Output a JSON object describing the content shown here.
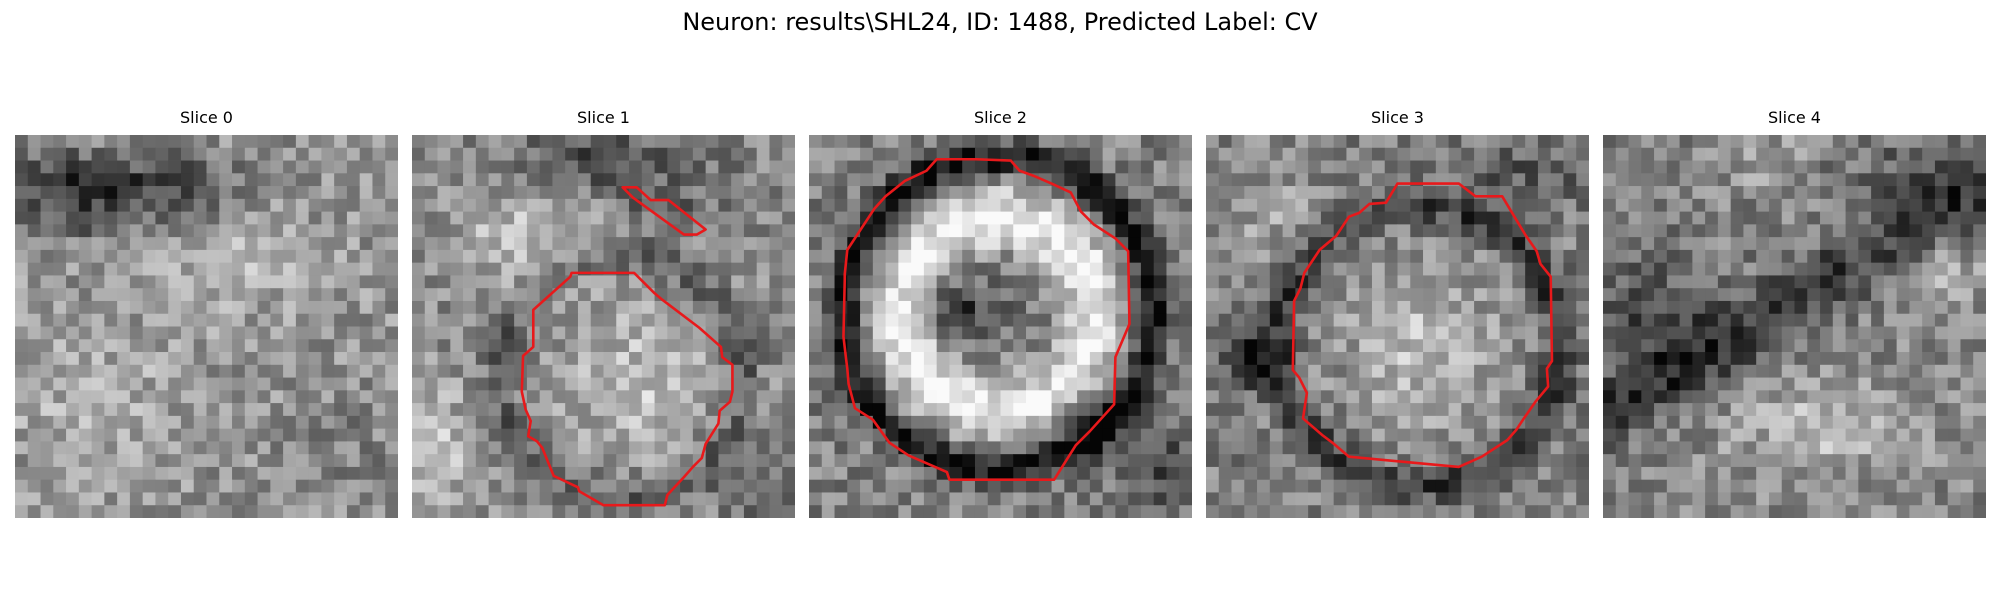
{
  "figure": {
    "title": "Neuron: results\\SHL24, ID: 1488, Predicted Label: CV"
  },
  "colors": {
    "contour": "#e8191b",
    "background": "#ffffff",
    "colormap": "grayscale"
  },
  "panels": [
    {
      "title": "Slice 0",
      "has_contour": false
    },
    {
      "title": "Slice 1",
      "has_contour": true
    },
    {
      "title": "Slice 2",
      "has_contour": true
    },
    {
      "title": "Slice 3",
      "has_contour": true
    },
    {
      "title": "Slice 4",
      "has_contour": false
    }
  ]
}
